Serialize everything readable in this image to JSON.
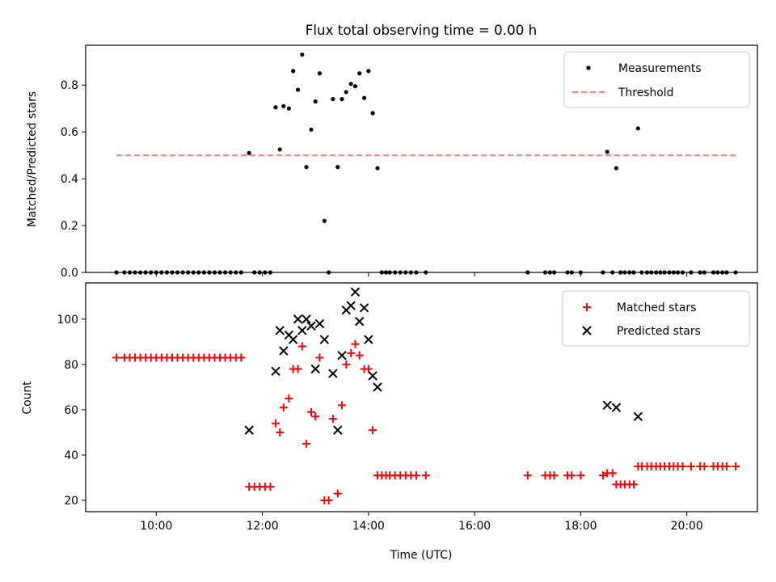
{
  "chart_data": [
    {
      "type": "scatter",
      "title": "Flux total observing time = 0.00 h",
      "xlabel": "",
      "ylabel": "Matched/Predicted stars",
      "xlim": [
        8.67,
        21.33
      ],
      "ylim": [
        0.0,
        0.97
      ],
      "yticks": [
        0.0,
        0.2,
        0.4,
        0.6,
        0.8
      ],
      "ytick_labels": [
        "0.0",
        "0.2",
        "0.4",
        "0.6",
        "0.8"
      ],
      "legend": {
        "position": "top-right",
        "entries": [
          {
            "label": "Measurements",
            "marker": "dot",
            "color": "#000000"
          },
          {
            "label": "Threshold",
            "marker": "dashed-line",
            "color": "#ff7f7f"
          }
        ]
      },
      "threshold": {
        "name": "Threshold",
        "y": 0.5,
        "x_range": [
          9.25,
          20.92
        ],
        "color": "#ff7f7f"
      },
      "series": [
        {
          "name": "Measurements",
          "marker": "dot",
          "color": "#000000",
          "x": [
            9.25,
            9.4,
            9.5,
            9.6,
            9.7,
            9.8,
            9.9,
            10.0,
            10.1,
            10.2,
            10.3,
            10.4,
            10.5,
            10.6,
            10.7,
            10.8,
            10.9,
            11.0,
            11.1,
            11.2,
            11.3,
            11.4,
            11.5,
            11.6,
            11.75,
            11.85,
            11.95,
            12.05,
            12.15,
            12.25,
            12.33,
            12.4,
            12.5,
            12.58,
            12.67,
            12.75,
            12.83,
            12.92,
            13.0,
            13.08,
            13.17,
            13.25,
            13.33,
            13.42,
            13.5,
            13.58,
            13.67,
            13.75,
            13.83,
            13.92,
            14.0,
            14.08,
            14.17,
            14.25,
            14.33,
            14.4,
            14.5,
            14.6,
            14.7,
            14.8,
            14.9,
            15.08,
            17.0,
            17.33,
            17.42,
            17.5,
            17.75,
            17.83,
            18.0,
            18.42,
            18.5,
            18.6,
            18.67,
            18.75,
            18.83,
            18.92,
            19.0,
            19.08,
            19.15,
            19.25,
            19.33,
            19.42,
            19.5,
            19.58,
            19.67,
            19.75,
            19.83,
            19.92,
            20.08,
            20.25,
            20.33,
            20.5,
            20.58,
            20.67,
            20.75,
            20.92
          ],
          "y": [
            0,
            0,
            0,
            0,
            0,
            0,
            0,
            0,
            0,
            0,
            0,
            0,
            0,
            0,
            0,
            0,
            0,
            0,
            0,
            0,
            0,
            0,
            0,
            0,
            0.51,
            0,
            0,
            0,
            0,
            0.705,
            0.525,
            0.71,
            0.7,
            0.86,
            0.78,
            0.93,
            0.45,
            0.61,
            0.73,
            0.85,
            0.22,
            0,
            0.74,
            0.45,
            0.74,
            0.77,
            0.805,
            0.795,
            0.85,
            0.745,
            0.86,
            0.68,
            0.445,
            0,
            0,
            0,
            0,
            0,
            0,
            0,
            0,
            0,
            0,
            0,
            0,
            0,
            0,
            0,
            0,
            0,
            0.515,
            0,
            0.445,
            0,
            0,
            0,
            0,
            0.615,
            0,
            0,
            0,
            0,
            0,
            0,
            0,
            0,
            0,
            0,
            0,
            0,
            0,
            0,
            0,
            0,
            0,
            0
          ]
        }
      ]
    },
    {
      "type": "scatter",
      "title": "",
      "xlabel": "Time (UTC)",
      "ylabel": "Count",
      "xlim": [
        8.67,
        21.33
      ],
      "ylim": [
        15,
        116
      ],
      "xticks": [
        10,
        12,
        14,
        16,
        18,
        20
      ],
      "xtick_labels": [
        "10:00",
        "12:00",
        "14:00",
        "16:00",
        "18:00",
        "20:00"
      ],
      "yticks": [
        20,
        40,
        60,
        80,
        100
      ],
      "ytick_labels": [
        "20",
        "40",
        "60",
        "80",
        "100"
      ],
      "legend": {
        "position": "top-right",
        "entries": [
          {
            "label": "Matched stars",
            "marker": "plus",
            "color": "#ff0000"
          },
          {
            "label": "Predicted stars",
            "marker": "x",
            "color": "#000000"
          }
        ]
      },
      "series": [
        {
          "name": "Matched stars",
          "marker": "plus",
          "color": "#ff0000",
          "x": [
            9.25,
            9.4,
            9.5,
            9.6,
            9.7,
            9.8,
            9.9,
            10.0,
            10.1,
            10.2,
            10.3,
            10.4,
            10.5,
            10.6,
            10.7,
            10.8,
            10.9,
            11.0,
            11.1,
            11.2,
            11.3,
            11.4,
            11.5,
            11.6,
            11.75,
            11.85,
            11.95,
            12.05,
            12.15,
            12.25,
            12.33,
            12.4,
            12.5,
            12.58,
            12.67,
            12.75,
            12.83,
            12.92,
            13.0,
            13.08,
            13.17,
            13.25,
            13.33,
            13.42,
            13.5,
            13.58,
            13.67,
            13.75,
            13.83,
            13.92,
            14.0,
            14.08,
            14.17,
            14.25,
            14.33,
            14.4,
            14.5,
            14.6,
            14.7,
            14.8,
            14.9,
            15.08,
            17.0,
            17.33,
            17.42,
            17.5,
            17.75,
            17.83,
            18.0,
            18.42,
            18.5,
            18.6,
            18.67,
            18.75,
            18.83,
            18.92,
            19.0,
            19.08,
            19.15,
            19.25,
            19.33,
            19.42,
            19.5,
            19.58,
            19.67,
            19.75,
            19.83,
            19.92,
            20.08,
            20.25,
            20.33,
            20.5,
            20.58,
            20.67,
            20.75,
            20.92
          ],
          "y": [
            83,
            83,
            83,
            83,
            83,
            83,
            83,
            83,
            83,
            83,
            83,
            83,
            83,
            83,
            83,
            83,
            83,
            83,
            83,
            83,
            83,
            83,
            83,
            83,
            26,
            26,
            26,
            26,
            26,
            54,
            50,
            61,
            65,
            78,
            78,
            88,
            45,
            59,
            57,
            83,
            20,
            20,
            56,
            23,
            62,
            80,
            85,
            89,
            84,
            78,
            78,
            51,
            31,
            31,
            31,
            31,
            31,
            31,
            31,
            31,
            31,
            31,
            31,
            31,
            31,
            31,
            31,
            31,
            31,
            31,
            32,
            32,
            27,
            27,
            27,
            27,
            27,
            35,
            35,
            35,
            35,
            35,
            35,
            35,
            35,
            35,
            35,
            35,
            35,
            35,
            35,
            35,
            35,
            35,
            35,
            35
          ]
        },
        {
          "name": "Predicted stars",
          "marker": "x",
          "color": "#000000",
          "x": [
            11.75,
            12.25,
            12.33,
            12.4,
            12.5,
            12.58,
            12.67,
            12.75,
            12.83,
            12.92,
            13.0,
            13.08,
            13.17,
            13.33,
            13.42,
            13.5,
            13.58,
            13.67,
            13.75,
            13.83,
            13.92,
            14.0,
            14.08,
            14.17,
            18.5,
            18.67,
            19.08
          ],
          "y": [
            51,
            77,
            95,
            86,
            93,
            91,
            100,
            95,
            100,
            97,
            78,
            98,
            91,
            76,
            51,
            84,
            104,
            106,
            112,
            99,
            105,
            91,
            75,
            70,
            62,
            61,
            57
          ]
        }
      ]
    }
  ]
}
